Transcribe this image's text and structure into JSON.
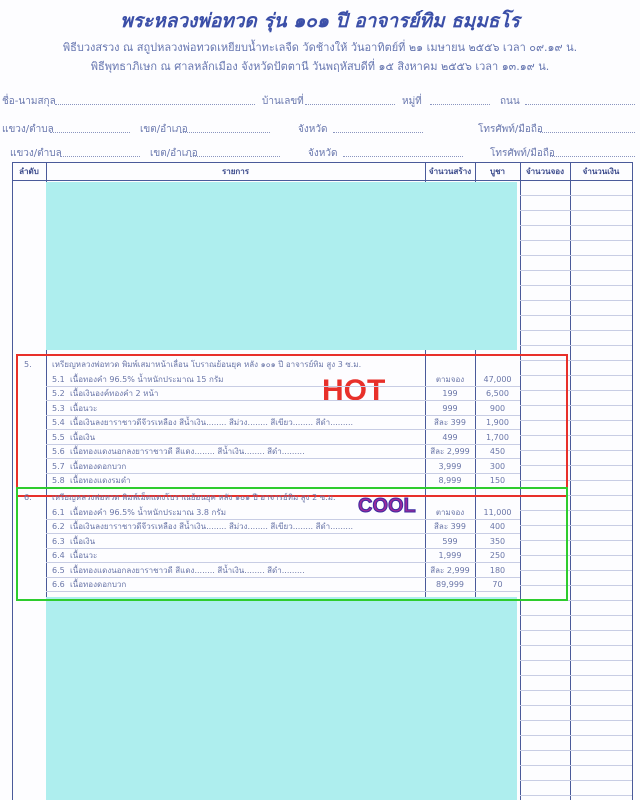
{
  "header": {
    "title": "พระหลวงพ่อทวด รุ่น ๑๐๑ ปี อาจารย์ทิม ธมฺมธโร",
    "line1": "พิธีบวงสรวง ณ สถูปหลวงพ่อทวดเหยียบน้ำทะเลจืด วัดช้างให้   วันอาทิตย์ที่ ๒๑ เมษายน ๒๕๕๖  เวลา ๐๙.๑๙ น.",
    "line2": "พิธีพุทธาภิเษก ณ ศาลหลักเมือง จังหวัดปัตตานี   วันพฤหัสบดีที่ ๑๕ สิงหาคม ๒๕๕๖  เวลา ๑๓.๑๙ น."
  },
  "form": {
    "name": "ชื่อ-นามสกุล",
    "house_no": "บ้านเลขที่",
    "moo": "หมู่ที่",
    "road": "ถนน",
    "subdistrict": "แขวง/ตำบล",
    "district": "เขต/อำเภอ",
    "province": "จังหวัด",
    "phone": "โทรศัพท์/มือถือ"
  },
  "table": {
    "headers": [
      "ลำดับ",
      "รายการ",
      "จำนวนสร้าง",
      "บูชา",
      "จำนวนจอง",
      "จำนวนเงิน"
    ]
  },
  "sections": [
    {
      "no": "5.",
      "title": "เหรียญหลวงพ่อทวด พิมพ์เสมาหน้าเลื่อน โบราณย้อนยุค หลัง ๑๐๑ ปี อาจารย์ทิม สูง 3 ซ.ม.",
      "label": "HOT",
      "color": "#e8302a",
      "items": [
        {
          "no": "5.1",
          "name": "เนื้อทองคำ 96.5% น้ำหนักประมาณ 15 กรัม",
          "qty": "ตามจอง",
          "price": "47,000"
        },
        {
          "no": "5.2",
          "name": "เนื้อเงินองค์ทองคำ 2 หน้า",
          "qty": "199",
          "price": "6,500"
        },
        {
          "no": "5.3",
          "name": "เนื้อนวะ",
          "qty": "999",
          "price": "900"
        },
        {
          "no": "5.4",
          "name": "เนื้อเงินลงยาราชาวดีจีวรเหลือง สีน้ำเงิน........ สีม่วง........ สีเขียว........ สีดำ.........",
          "qty": "สีละ 399",
          "price": "1,900"
        },
        {
          "no": "5.5",
          "name": "เนื้อเงิน",
          "qty": "499",
          "price": "1,700"
        },
        {
          "no": "5.6",
          "name": "เนื้อทองแดงนอกลงยาราชาวดี สีแดง........ สีน้ำเงิน........ สีดำ.........",
          "qty": "สีละ 2,999",
          "price": "450"
        },
        {
          "no": "5.7",
          "name": "เนื้อทองดอกบวก",
          "qty": "3,999",
          "price": "300"
        },
        {
          "no": "5.8",
          "name": "เนื้อทองแดงรมดำ",
          "qty": "8,999",
          "price": "150"
        }
      ]
    },
    {
      "no": "6.",
      "title": "เหรียญหลวงพ่อทวด พิมพ์เม็ดแตงโบราณย้อนยุค หลัง ๑๐๑ ปี อาจารย์ทิม สูง 2 ซ.ม.",
      "label": "COOL",
      "color": "#2ecc2e",
      "items": [
        {
          "no": "6.1",
          "name": "เนื้อทองคำ 96.5% น้ำหนักประมาณ 3.8 กรัม",
          "qty": "ตามจอง",
          "price": "11,000"
        },
        {
          "no": "6.2",
          "name": "เนื้อเงินลงยาราชาวดีจีวรเหลือง สีน้ำเงิน........ สีม่วง........ สีเขียว........ สีดำ.........",
          "qty": "สีละ 399",
          "price": "400"
        },
        {
          "no": "6.3",
          "name": "เนื้อเงิน",
          "qty": "599",
          "price": "350"
        },
        {
          "no": "6.4",
          "name": "เนื้อนวะ",
          "qty": "1,999",
          "price": "250"
        },
        {
          "no": "6.5",
          "name": "เนื้อทองแดงนอกลงยาราชาวดี สีแดง........ สีน้ำเงิน........ สีดำ.........",
          "qty": "สีละ 2,999",
          "price": "180"
        },
        {
          "no": "6.6",
          "name": "เนื้อทองดอกบวก",
          "qty": "89,999",
          "price": "70"
        }
      ]
    }
  ]
}
